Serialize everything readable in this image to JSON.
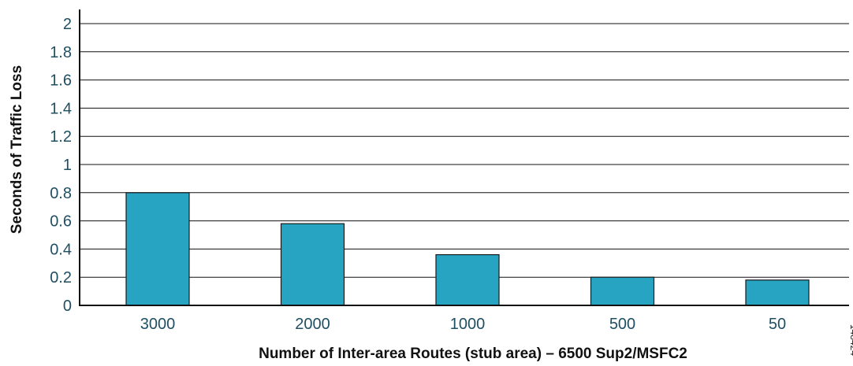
{
  "chart_data": {
    "type": "bar",
    "categories": [
      "3000",
      "2000",
      "1000",
      "500",
      "50"
    ],
    "values": [
      0.8,
      0.58,
      0.36,
      0.2,
      0.18
    ],
    "xlabel": "Number of Inter-area Routes (stub area) – 6500 Sup2/MSFC2",
    "ylabel": "Seconds of Traffic Loss",
    "ylim": [
      0,
      2
    ],
    "yticks": [
      "0",
      "0.2",
      "0.4",
      "0.6",
      "0.8",
      "1",
      "1.2",
      "1.4",
      "1.6",
      "1.8",
      "2"
    ],
    "grid": true,
    "legend": "none",
    "bar_color": "#26a4c2",
    "bar_edge_color": "#1a1a1a",
    "figure_id": "148424"
  }
}
